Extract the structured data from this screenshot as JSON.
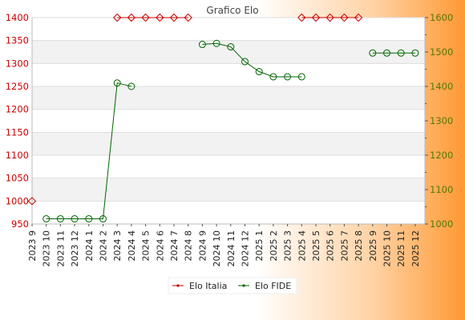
{
  "chart_data": {
    "type": "line",
    "title": "Grafico Elo",
    "x": [
      "2023 9",
      "2023 10",
      "2023 11",
      "2023 12",
      "2024 1",
      "2024 2",
      "2024 3",
      "2024 4",
      "2024 5",
      "2024 6",
      "2024 7",
      "2024 8",
      "2024 9",
      "2024 10",
      "2024 11",
      "2024 12",
      "2025 1",
      "2025 2",
      "2025 3",
      "2025 4",
      "2025 5",
      "2025 6",
      "2025 7",
      "2025 8",
      "2025 9",
      "2025 10",
      "2025 11",
      "2025 12"
    ],
    "y_left": {
      "ylim": [
        950,
        1400
      ],
      "ticks": [
        950,
        1000,
        1050,
        1100,
        1150,
        1200,
        1250,
        1300,
        1350,
        1400
      ]
    },
    "y_right": {
      "ylim": [
        1000,
        1600
      ],
      "ticks": [
        1000,
        1100,
        1200,
        1300,
        1400,
        1500,
        1600
      ]
    },
    "grid": "horizontal-bands",
    "legend_position": "bottom-center",
    "series": [
      {
        "name": "Elo Italia",
        "color": "#cc0000",
        "axis": "left",
        "marker": "diamond",
        "values": [
          1000,
          null,
          null,
          null,
          null,
          null,
          1400,
          1400,
          1400,
          1400,
          1400,
          1400,
          null,
          null,
          null,
          null,
          null,
          null,
          null,
          1400,
          1400,
          1400,
          1400,
          1400,
          null,
          null,
          null,
          null
        ]
      },
      {
        "name": "Elo FIDE",
        "color": "#006600",
        "axis": "right",
        "marker": "circle",
        "values": [
          null,
          1015,
          1015,
          1015,
          1015,
          1015,
          1410,
          1400,
          null,
          null,
          null,
          null,
          1522,
          1525,
          1515,
          1472,
          1443,
          1428,
          1428,
          1428,
          null,
          null,
          null,
          null,
          1497,
          1497,
          1497,
          1497
        ]
      }
    ]
  }
}
